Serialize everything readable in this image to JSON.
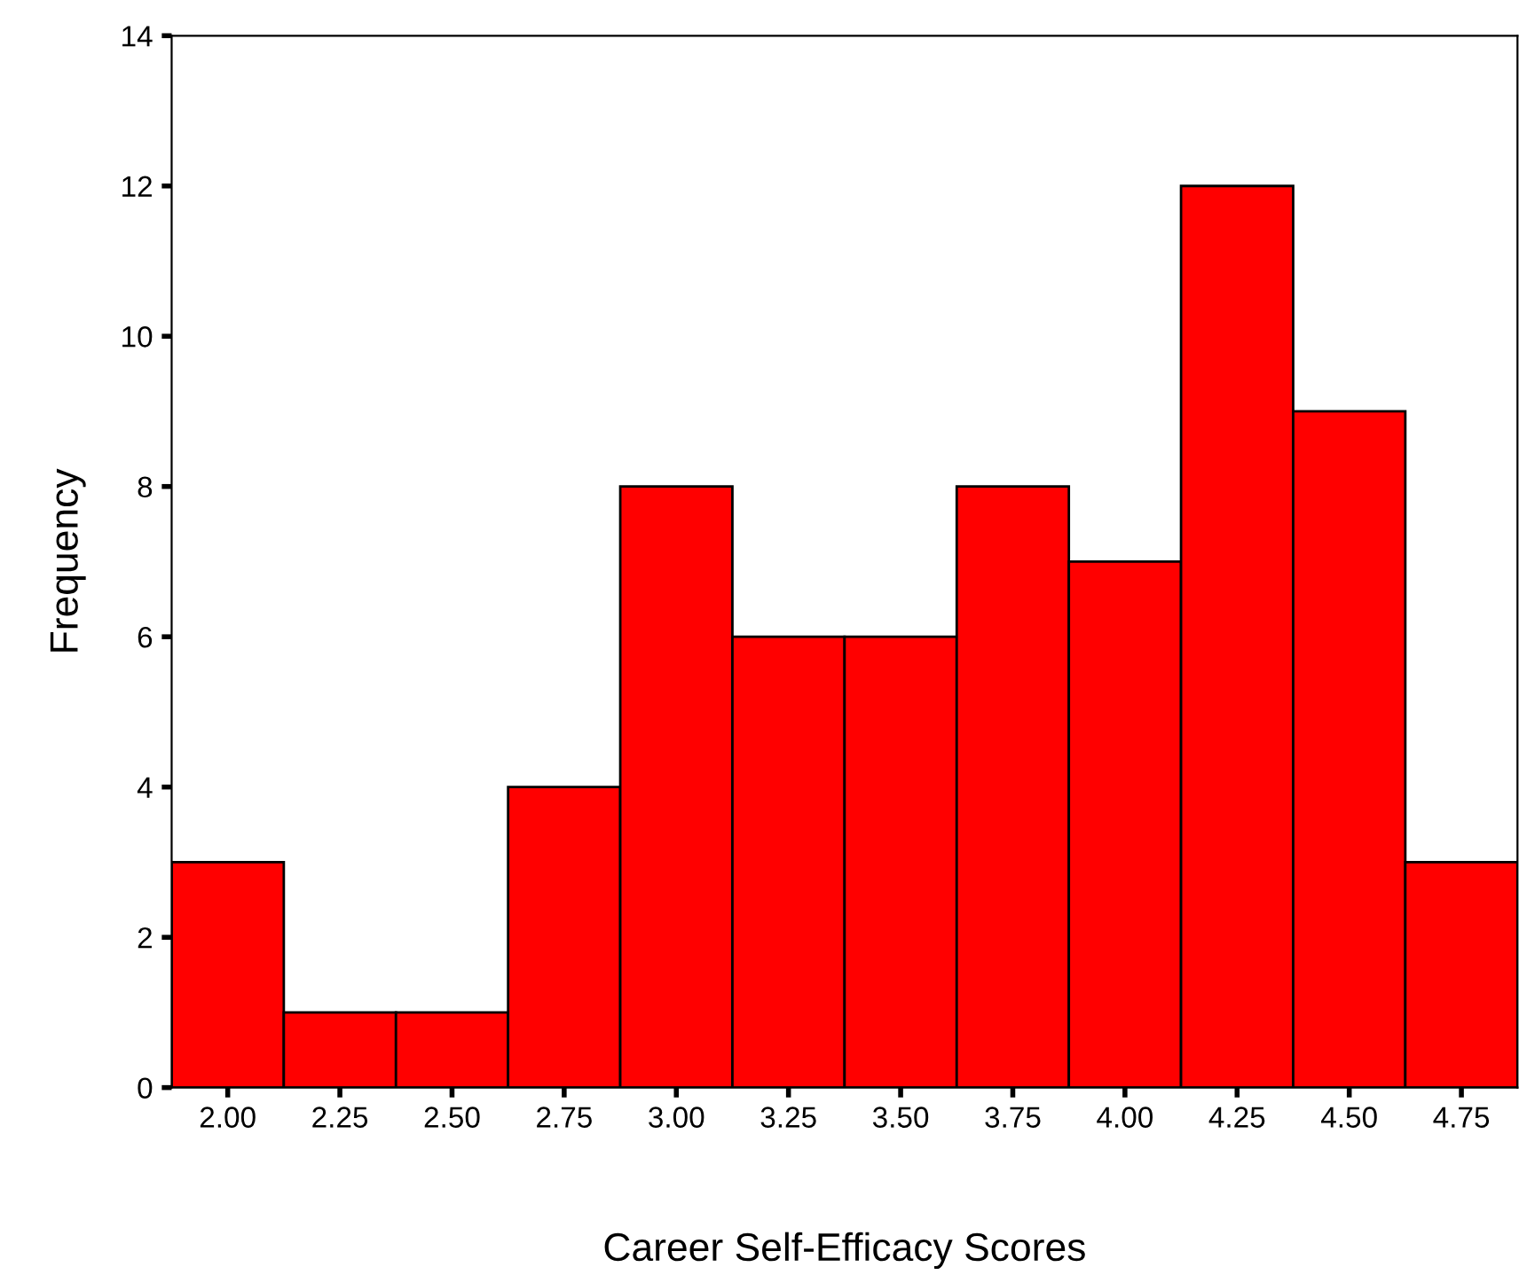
{
  "chart_data": {
    "type": "histogram",
    "xlabel": "Career Self-Efficacy Scores",
    "ylabel": "Frequency",
    "bins": [
      1.875,
      2.125,
      2.375,
      2.625,
      2.875,
      3.125,
      3.375,
      3.625,
      3.875,
      4.125,
      4.375,
      4.625,
      4.875
    ],
    "values": [
      3,
      1,
      1,
      4,
      8,
      6,
      6,
      8,
      7,
      12,
      9,
      3
    ],
    "color": "#ff0000",
    "xlim": [
      1.875,
      4.875
    ],
    "ylim": [
      0,
      14
    ],
    "xticks": [
      {
        "value": 2.0,
        "label": "2.00"
      },
      {
        "value": 2.25,
        "label": "2.25"
      },
      {
        "value": 2.5,
        "label": "2.50"
      },
      {
        "value": 2.75,
        "label": "2.75"
      },
      {
        "value": 3.0,
        "label": "3.00"
      },
      {
        "value": 3.25,
        "label": "3.25"
      },
      {
        "value": 3.5,
        "label": "3.50"
      },
      {
        "value": 3.75,
        "label": "3.75"
      },
      {
        "value": 4.0,
        "label": "4.00"
      },
      {
        "value": 4.25,
        "label": "4.25"
      },
      {
        "value": 4.5,
        "label": "4.50"
      },
      {
        "value": 4.75,
        "label": "4.75"
      }
    ],
    "yticks": [
      0,
      2,
      4,
      6,
      8,
      10,
      12,
      14
    ],
    "grid": false
  }
}
